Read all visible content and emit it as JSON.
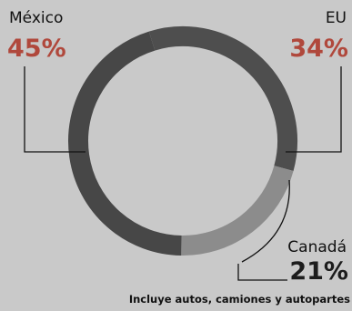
{
  "chart_data": {
    "type": "pie",
    "donut": true,
    "categories": [
      "México",
      "EU",
      "Canadá"
    ],
    "values": [
      45,
      34,
      21
    ],
    "value_labels": [
      "45%",
      "34%",
      "21%"
    ],
    "colors": {
      "México": "#474747",
      "EU": "#4e4e4e",
      "Canadá": "#8c8c8c",
      "percent_text": "#b0483c",
      "percent_text_dark": "#1c1c1c",
      "leader_line": "#111111",
      "background": "#c9c9c9"
    },
    "note": "Incluye autos, camiones y autopartes"
  }
}
